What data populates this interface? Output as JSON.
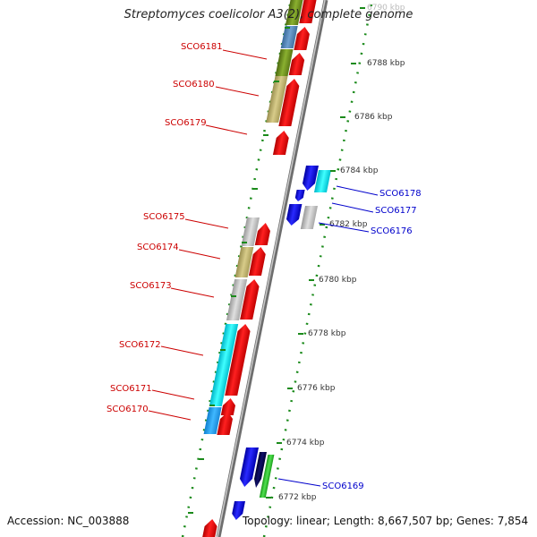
{
  "header": {
    "title": "Streptomyces coelicolor A3(2), complete genome"
  },
  "footer": {
    "accession": "Accession: NC_003888",
    "summary": "Topology: linear; Length: 8,667,507 bp; Genes: 7,854"
  },
  "colors": {
    "forward_gene": "#ff0000",
    "reverse_gene": "#0000ee",
    "backbone": "#8c8c8c",
    "tick": "#1a8a1a",
    "left_label": "#cc0000",
    "right_label": "#0000cc"
  },
  "scale_labels": [
    "6790 kbp",
    "6788 kbp",
    "6786 kbp",
    "6784 kbp",
    "6782 kbp",
    "6780 kbp",
    "6778 kbp",
    "6776 kbp",
    "6774 kbp",
    "6772 kbp"
  ],
  "left_genes": [
    {
      "name": "SCO6181"
    },
    {
      "name": "SCO6180"
    },
    {
      "name": "SCO6179"
    },
    {
      "name": "SCO6175"
    },
    {
      "name": "SCO6174"
    },
    {
      "name": "SCO6173"
    },
    {
      "name": "SCO6172"
    },
    {
      "name": "SCO6171"
    },
    {
      "name": "SCO6170"
    }
  ],
  "right_genes": [
    {
      "name": "SCO6178"
    },
    {
      "name": "SCO6177"
    },
    {
      "name": "SCO6176"
    },
    {
      "name": "SCO6169"
    }
  ]
}
